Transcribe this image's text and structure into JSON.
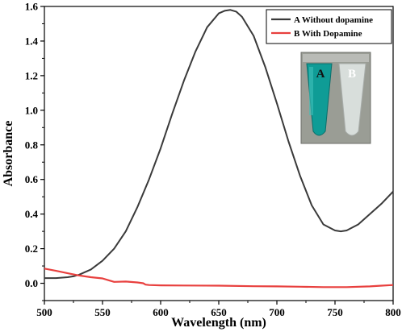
{
  "chart_data": {
    "type": "line",
    "title": "",
    "xlabel": "Wavelength (nm)",
    "ylabel": "Absorbance",
    "xlim": [
      500,
      800
    ],
    "ylim": [
      -0.1,
      1.6
    ],
    "xticks": [
      500,
      550,
      600,
      650,
      700,
      750,
      800
    ],
    "xtick_labels": [
      "500",
      "550",
      "600",
      "650",
      "700",
      "750",
      "800"
    ],
    "yticks": [
      0.0,
      0.2,
      0.4,
      0.6,
      0.8,
      1.0,
      1.2,
      1.4,
      1.6
    ],
    "ytick_labels": [
      "0.0",
      "0.2",
      "0.4",
      "0.6",
      "0.8",
      "1.0",
      "1.2",
      "1.4",
      "1.6"
    ],
    "grid": false,
    "legend_position": "top-right",
    "series": [
      {
        "name": "A Without dopamine",
        "color": "#3a3a3a",
        "x": [
          500,
          510,
          520,
          525,
          530,
          540,
          550,
          560,
          570,
          580,
          590,
          600,
          610,
          620,
          630,
          640,
          650,
          655,
          660,
          665,
          670,
          680,
          690,
          700,
          710,
          720,
          730,
          740,
          750,
          755,
          760,
          770,
          780,
          790,
          800
        ],
        "y": [
          0.03,
          0.03,
          0.035,
          0.04,
          0.05,
          0.08,
          0.13,
          0.2,
          0.3,
          0.44,
          0.6,
          0.78,
          0.98,
          1.17,
          1.34,
          1.48,
          1.56,
          1.575,
          1.58,
          1.57,
          1.54,
          1.43,
          1.25,
          1.04,
          0.82,
          0.62,
          0.45,
          0.34,
          0.305,
          0.3,
          0.305,
          0.34,
          0.4,
          0.46,
          0.53
        ]
      },
      {
        "name": "B With Dopamine",
        "color": "#e8403e",
        "x": [
          500,
          510,
          520,
          530,
          540,
          550,
          555,
          560,
          570,
          580,
          585,
          587,
          590,
          600,
          620,
          650,
          680,
          700,
          720,
          740,
          760,
          780,
          790,
          800
        ],
        "y": [
          0.085,
          0.072,
          0.058,
          0.045,
          0.035,
          0.028,
          0.018,
          0.008,
          0.01,
          0.005,
          0.0,
          -0.008,
          -0.01,
          -0.012,
          -0.013,
          -0.014,
          -0.017,
          -0.018,
          -0.02,
          -0.022,
          -0.022,
          -0.018,
          -0.014,
          -0.01
        ]
      }
    ],
    "inset_photo": {
      "labels": [
        "A",
        "B"
      ],
      "colors": {
        "background": "#9a9d95",
        "tube_a": "#0f9c96",
        "tube_b": "#d8dedb"
      }
    }
  }
}
